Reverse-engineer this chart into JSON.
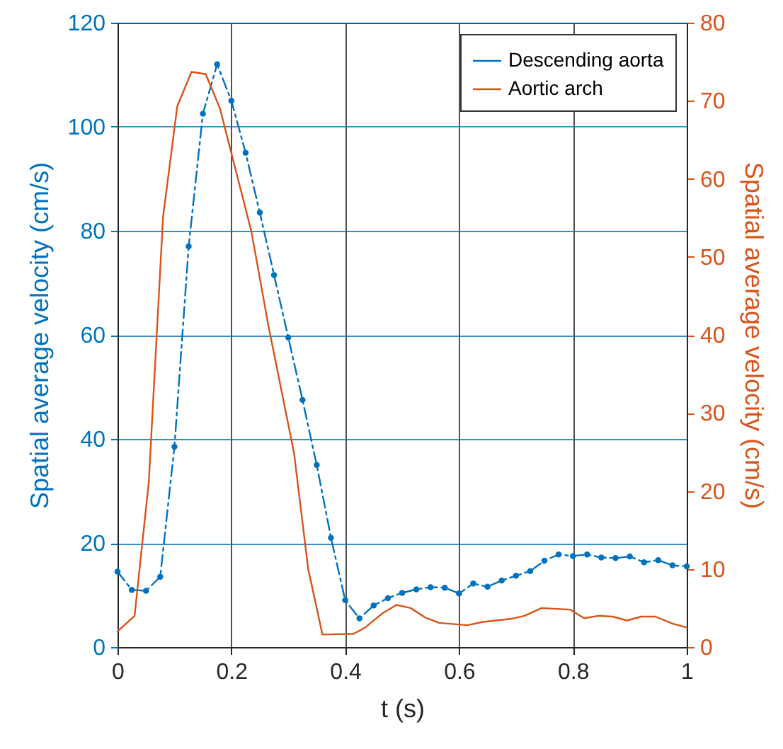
{
  "chart_data": {
    "type": "line",
    "xlabel": "t (s)",
    "ylabel": "Spatial average velocity (cm/s)",
    "y2label": "Spatial average velocity (cm/s)",
    "xlim": [
      0,
      1
    ],
    "xticks": [
      0,
      0.2,
      0.4,
      0.6,
      0.8,
      1
    ],
    "ylim": [
      0,
      120
    ],
    "yticks": [
      0,
      20,
      40,
      60,
      80,
      100,
      120
    ],
    "y2lim": [
      0,
      80
    ],
    "y2ticks": [
      0,
      10,
      20,
      30,
      40,
      50,
      60,
      70,
      80
    ],
    "grid": true,
    "legend": "top right",
    "series": [
      {
        "name": "Descending aorta",
        "color": "#0072bd",
        "axis": "y",
        "marker": "circle",
        "line_style": "dashed",
        "x": [
          0,
          0.025,
          0.05,
          0.075,
          0.1,
          0.125,
          0.15,
          0.175,
          0.2,
          0.225,
          0.25,
          0.275,
          0.3,
          0.325,
          0.35,
          0.375,
          0.4,
          0.425,
          0.45,
          0.475,
          0.5,
          0.525,
          0.55,
          0.575,
          0.6,
          0.625,
          0.65,
          0.675,
          0.7,
          0.725,
          0.75,
          0.775,
          0.8,
          0.825,
          0.85,
          0.875,
          0.9,
          0.925,
          0.95,
          0.975,
          1
        ],
        "values": [
          14.5,
          11,
          10.8,
          13.5,
          38.5,
          77,
          102.5,
          112,
          105,
          95,
          83.5,
          71.5,
          59.5,
          47.5,
          35,
          21,
          9,
          5.5,
          8,
          9.4,
          10.4,
          11.1,
          11.5,
          11.4,
          10.3,
          12.2,
          11.6,
          12.8,
          13.7,
          14.6,
          16.6,
          17.8,
          17.5,
          17.8,
          17.2,
          17.1,
          17.4,
          16.3,
          16.7,
          15.7,
          15.5
        ]
      },
      {
        "name": "Aortic arch",
        "color": "#d95319",
        "axis": "y2",
        "marker": "none",
        "line_style": "solid",
        "x": [
          0,
          0.03,
          0.055,
          0.08,
          0.105,
          0.13,
          0.155,
          0.18,
          0.235,
          0.265,
          0.31,
          0.335,
          0.36,
          0.415,
          0.435,
          0.465,
          0.49,
          0.515,
          0.54,
          0.565,
          0.615,
          0.64,
          0.69,
          0.715,
          0.745,
          0.795,
          0.82,
          0.845,
          0.87,
          0.895,
          0.92,
          0.945,
          0.975,
          1
        ],
        "values": [
          2.0,
          4,
          21.2,
          55.1,
          69.3,
          73.7,
          73.4,
          69,
          53.3,
          41.2,
          24.9,
          10,
          1.6,
          1.7,
          2.5,
          4.3,
          5.4,
          5.0,
          3.8,
          3.1,
          2.8,
          3.2,
          3.6,
          4.0,
          5.0,
          4.8,
          3.7,
          4.0,
          3.9,
          3.4,
          3.9,
          3.9,
          3.0,
          2.5
        ]
      }
    ]
  }
}
